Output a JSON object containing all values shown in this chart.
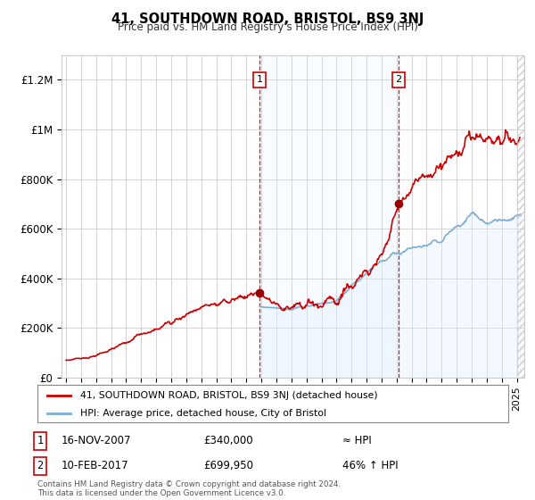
{
  "title": "41, SOUTHDOWN ROAD, BRISTOL, BS9 3NJ",
  "subtitle": "Price paid vs. HM Land Registry's House Price Index (HPI)",
  "ylabel_ticks": [
    "£0",
    "£200K",
    "£400K",
    "£600K",
    "£800K",
    "£1M",
    "£1.2M"
  ],
  "ytick_values": [
    0,
    200000,
    400000,
    600000,
    800000,
    1000000,
    1200000
  ],
  "ylim": [
    0,
    1300000
  ],
  "xlim_start": 1994.7,
  "xlim_end": 2025.5,
  "sale1_x": 2007.88,
  "sale1_y": 340000,
  "sale1_label": "1",
  "sale1_date": "16-NOV-2007",
  "sale1_price": "£340,000",
  "sale1_note": "≈ HPI",
  "sale2_x": 2017.12,
  "sale2_y": 699950,
  "sale2_label": "2",
  "sale2_date": "10-FEB-2017",
  "sale2_price": "£699,950",
  "sale2_note": "46% ↑ HPI",
  "legend_line1": "41, SOUTHDOWN ROAD, BRISTOL, BS9 3NJ (detached house)",
  "legend_line2": "HPI: Average price, detached house, City of Bristol",
  "footer": "Contains HM Land Registry data © Crown copyright and database right 2024.\nThis data is licensed under the Open Government Licence v3.0.",
  "line_color_red": "#cc0000",
  "line_color_blue": "#7dadd4",
  "shade_color": "#ddeeff",
  "grid_color": "#cccccc",
  "background_color": "#ffffff",
  "sale_marker_color": "#990000",
  "sale_box_color": "#cc0000",
  "hatch_color": "#cccccc"
}
